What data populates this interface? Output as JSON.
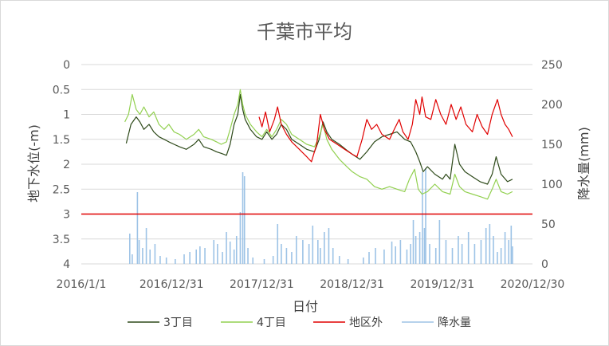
{
  "chart_data": {
    "type": "line",
    "title": "千葉市平均",
    "xlabel": "日付",
    "ylabel_left": "地下水位(-m)",
    "ylabel_right": "降水量(mm)",
    "x_ticks": [
      "2016/1/1",
      "2016/12/31",
      "2017/12/31",
      "2018/12/31",
      "2019/12/31",
      "2020/12/30"
    ],
    "xlim": [
      "2016-01-01",
      "2020-12-30"
    ],
    "ylim_left": [
      0,
      4
    ],
    "y_left_reversed": true,
    "y_left_ticks": [
      "0",
      "0.5",
      "1",
      "1.5",
      "2",
      "2.5",
      "3",
      "3.5",
      "4"
    ],
    "ylim_right": [
      0,
      250
    ],
    "y_right_ticks": [
      "0",
      "50",
      "100",
      "150",
      "200",
      "250"
    ],
    "legend_position": "bottom",
    "grid": true,
    "reference_line": {
      "axis": "left",
      "value": 3,
      "color": "#e00000"
    },
    "series": [
      {
        "name": "3丁目",
        "axis": "left",
        "color": "#2e4a1a",
        "points": [
          [
            "2016-07-01",
            1.58
          ],
          [
            "2016-07-20",
            1.2
          ],
          [
            "2016-08-10",
            1.05
          ],
          [
            "2016-08-25",
            1.15
          ],
          [
            "2016-09-10",
            1.3
          ],
          [
            "2016-10-01",
            1.2
          ],
          [
            "2016-10-20",
            1.35
          ],
          [
            "2016-11-10",
            1.45
          ],
          [
            "2016-12-01",
            1.5
          ],
          [
            "2016-12-20",
            1.55
          ],
          [
            "2017-01-10",
            1.6
          ],
          [
            "2017-02-01",
            1.65
          ],
          [
            "2017-03-01",
            1.7
          ],
          [
            "2017-04-01",
            1.6
          ],
          [
            "2017-04-20",
            1.5
          ],
          [
            "2017-05-10",
            1.65
          ],
          [
            "2017-06-10",
            1.7
          ],
          [
            "2017-07-01",
            1.75
          ],
          [
            "2017-07-20",
            1.78
          ],
          [
            "2017-08-10",
            1.82
          ],
          [
            "2017-08-25",
            1.6
          ],
          [
            "2017-09-10",
            1.2
          ],
          [
            "2017-09-25",
            1.0
          ],
          [
            "2017-10-05",
            0.6
          ],
          [
            "2017-10-15",
            0.9
          ],
          [
            "2017-10-25",
            1.1
          ],
          [
            "2017-11-15",
            1.3
          ],
          [
            "2017-12-10",
            1.45
          ],
          [
            "2018-01-01",
            1.5
          ],
          [
            "2018-01-20",
            1.35
          ],
          [
            "2018-02-10",
            1.5
          ],
          [
            "2018-03-01",
            1.4
          ],
          [
            "2018-03-20",
            1.2
          ],
          [
            "2018-04-10",
            1.3
          ],
          [
            "2018-05-01",
            1.5
          ],
          [
            "2018-06-01",
            1.6
          ],
          [
            "2018-07-01",
            1.7
          ],
          [
            "2018-08-01",
            1.75
          ],
          [
            "2018-08-20",
            1.5
          ],
          [
            "2018-09-05",
            1.15
          ],
          [
            "2018-09-20",
            1.35
          ],
          [
            "2018-10-10",
            1.5
          ],
          [
            "2018-11-10",
            1.6
          ],
          [
            "2018-12-10",
            1.72
          ],
          [
            "2019-01-01",
            1.8
          ],
          [
            "2019-02-01",
            1.9
          ],
          [
            "2019-03-01",
            1.75
          ],
          [
            "2019-04-01",
            1.55
          ],
          [
            "2019-05-01",
            1.45
          ],
          [
            "2019-06-01",
            1.4
          ],
          [
            "2019-07-01",
            1.35
          ],
          [
            "2019-08-01",
            1.5
          ],
          [
            "2019-08-25",
            1.55
          ],
          [
            "2019-09-15",
            1.75
          ],
          [
            "2019-10-01",
            1.95
          ],
          [
            "2019-10-15",
            2.15
          ],
          [
            "2019-11-01",
            2.05
          ],
          [
            "2019-12-01",
            2.2
          ],
          [
            "2020-01-01",
            2.3
          ],
          [
            "2020-01-15",
            2.2
          ],
          [
            "2020-02-01",
            2.3
          ],
          [
            "2020-02-20",
            1.6
          ],
          [
            "2020-03-10",
            2.0
          ],
          [
            "2020-04-01",
            2.15
          ],
          [
            "2020-05-01",
            2.25
          ],
          [
            "2020-06-01",
            2.35
          ],
          [
            "2020-07-01",
            2.4
          ],
          [
            "2020-07-20",
            2.2
          ],
          [
            "2020-08-05",
            1.85
          ],
          [
            "2020-08-25",
            2.2
          ],
          [
            "2020-09-20",
            2.35
          ],
          [
            "2020-10-10",
            2.3
          ]
        ]
      },
      {
        "name": "4丁目",
        "axis": "left",
        "color": "#92d050",
        "points": [
          [
            "2016-06-25",
            1.15
          ],
          [
            "2016-07-10",
            1.0
          ],
          [
            "2016-07-25",
            0.6
          ],
          [
            "2016-08-10",
            0.9
          ],
          [
            "2016-08-25",
            1.0
          ],
          [
            "2016-09-10",
            0.85
          ],
          [
            "2016-10-01",
            1.05
          ],
          [
            "2016-10-20",
            0.95
          ],
          [
            "2016-11-10",
            1.2
          ],
          [
            "2016-12-01",
            1.3
          ],
          [
            "2016-12-20",
            1.2
          ],
          [
            "2017-01-10",
            1.35
          ],
          [
            "2017-02-01",
            1.4
          ],
          [
            "2017-03-01",
            1.5
          ],
          [
            "2017-04-01",
            1.4
          ],
          [
            "2017-04-20",
            1.3
          ],
          [
            "2017-05-10",
            1.45
          ],
          [
            "2017-06-10",
            1.5
          ],
          [
            "2017-07-01",
            1.55
          ],
          [
            "2017-07-20",
            1.6
          ],
          [
            "2017-08-10",
            1.55
          ],
          [
            "2017-08-25",
            1.3
          ],
          [
            "2017-09-10",
            1.0
          ],
          [
            "2017-09-25",
            0.8
          ],
          [
            "2017-10-05",
            0.5
          ],
          [
            "2017-10-15",
            0.8
          ],
          [
            "2017-10-25",
            1.0
          ],
          [
            "2017-11-15",
            1.2
          ],
          [
            "2017-12-10",
            1.35
          ],
          [
            "2018-01-01",
            1.45
          ],
          [
            "2018-01-20",
            1.3
          ],
          [
            "2018-02-10",
            1.45
          ],
          [
            "2018-03-01",
            1.3
          ],
          [
            "2018-03-20",
            1.1
          ],
          [
            "2018-04-10",
            1.2
          ],
          [
            "2018-05-01",
            1.4
          ],
          [
            "2018-06-01",
            1.5
          ],
          [
            "2018-07-01",
            1.6
          ],
          [
            "2018-08-01",
            1.65
          ],
          [
            "2018-08-20",
            1.45
          ],
          [
            "2018-09-05",
            1.2
          ],
          [
            "2018-09-20",
            1.5
          ],
          [
            "2018-10-10",
            1.7
          ],
          [
            "2018-11-10",
            1.9
          ],
          [
            "2018-12-10",
            2.05
          ],
          [
            "2019-01-01",
            2.15
          ],
          [
            "2019-02-01",
            2.25
          ],
          [
            "2019-03-01",
            2.3
          ],
          [
            "2019-04-01",
            2.45
          ],
          [
            "2019-05-01",
            2.5
          ],
          [
            "2019-06-01",
            2.45
          ],
          [
            "2019-07-01",
            2.5
          ],
          [
            "2019-08-01",
            2.55
          ],
          [
            "2019-08-20",
            2.3
          ],
          [
            "2019-09-10",
            2.1
          ],
          [
            "2019-09-25",
            2.5
          ],
          [
            "2019-10-10",
            2.6
          ],
          [
            "2019-11-01",
            2.55
          ],
          [
            "2019-12-01",
            2.4
          ],
          [
            "2020-01-01",
            2.55
          ],
          [
            "2020-02-01",
            2.6
          ],
          [
            "2020-02-20",
            2.2
          ],
          [
            "2020-03-10",
            2.45
          ],
          [
            "2020-04-01",
            2.55
          ],
          [
            "2020-05-01",
            2.6
          ],
          [
            "2020-06-01",
            2.65
          ],
          [
            "2020-07-01",
            2.7
          ],
          [
            "2020-07-20",
            2.5
          ],
          [
            "2020-08-05",
            2.3
          ],
          [
            "2020-08-25",
            2.55
          ],
          [
            "2020-09-20",
            2.6
          ],
          [
            "2020-10-10",
            2.55
          ]
        ]
      },
      {
        "name": "地区外",
        "axis": "left",
        "color": "#e00000",
        "points": [
          [
            "2017-12-20",
            1.05
          ],
          [
            "2018-01-01",
            1.25
          ],
          [
            "2018-01-15",
            0.95
          ],
          [
            "2018-02-01",
            1.35
          ],
          [
            "2018-02-20",
            1.1
          ],
          [
            "2018-03-05",
            0.85
          ],
          [
            "2018-03-20",
            1.2
          ],
          [
            "2018-04-10",
            1.4
          ],
          [
            "2018-05-01",
            1.55
          ],
          [
            "2018-06-01",
            1.7
          ],
          [
            "2018-07-01",
            1.85
          ],
          [
            "2018-07-20",
            1.95
          ],
          [
            "2018-08-10",
            1.6
          ],
          [
            "2018-08-25",
            1.0
          ],
          [
            "2018-09-10",
            1.3
          ],
          [
            "2018-10-01",
            1.5
          ],
          [
            "2018-11-01",
            1.6
          ],
          [
            "2018-12-01",
            1.7
          ],
          [
            "2019-01-01",
            1.8
          ],
          [
            "2019-01-20",
            1.85
          ],
          [
            "2019-02-10",
            1.5
          ],
          [
            "2019-03-01",
            1.1
          ],
          [
            "2019-03-20",
            1.3
          ],
          [
            "2019-04-10",
            1.2
          ],
          [
            "2019-05-01",
            1.4
          ],
          [
            "2019-06-01",
            1.5
          ],
          [
            "2019-06-20",
            1.3
          ],
          [
            "2019-07-10",
            1.1
          ],
          [
            "2019-07-25",
            1.35
          ],
          [
            "2019-08-15",
            1.5
          ],
          [
            "2019-09-01",
            1.2
          ],
          [
            "2019-09-15",
            0.7
          ],
          [
            "2019-10-01",
            1.0
          ],
          [
            "2019-10-10",
            0.65
          ],
          [
            "2019-10-25",
            1.05
          ],
          [
            "2019-11-15",
            1.1
          ],
          [
            "2019-12-05",
            0.7
          ],
          [
            "2019-12-25",
            1.0
          ],
          [
            "2020-01-15",
            1.2
          ],
          [
            "2020-02-05",
            0.8
          ],
          [
            "2020-02-25",
            1.1
          ],
          [
            "2020-03-15",
            0.85
          ],
          [
            "2020-04-05",
            1.2
          ],
          [
            "2020-05-01",
            1.35
          ],
          [
            "2020-05-20",
            1.0
          ],
          [
            "2020-06-10",
            1.25
          ],
          [
            "2020-07-01",
            1.4
          ],
          [
            "2020-07-20",
            1.0
          ],
          [
            "2020-08-10",
            0.7
          ],
          [
            "2020-08-25",
            1.0
          ],
          [
            "2020-09-10",
            1.2
          ],
          [
            "2020-09-25",
            1.3
          ],
          [
            "2020-10-10",
            1.45
          ]
        ]
      },
      {
        "name": "降水量",
        "axis": "right",
        "color": "#9dc3e6",
        "render": "spikes",
        "points": [
          [
            "2016-07-15",
            38
          ],
          [
            "2016-07-25",
            12
          ],
          [
            "2016-08-15",
            90
          ],
          [
            "2016-08-22",
            30
          ],
          [
            "2016-09-05",
            20
          ],
          [
            "2016-09-20",
            45
          ],
          [
            "2016-10-05",
            18
          ],
          [
            "2016-10-25",
            25
          ],
          [
            "2016-11-15",
            10
          ],
          [
            "2016-12-10",
            8
          ],
          [
            "2017-01-15",
            6
          ],
          [
            "2017-02-20",
            12
          ],
          [
            "2017-03-15",
            15
          ],
          [
            "2017-04-10",
            18
          ],
          [
            "2017-04-25",
            22
          ],
          [
            "2017-05-15",
            20
          ],
          [
            "2017-06-20",
            30
          ],
          [
            "2017-07-05",
            25
          ],
          [
            "2017-07-25",
            15
          ],
          [
            "2017-08-10",
            40
          ],
          [
            "2017-08-25",
            28
          ],
          [
            "2017-09-10",
            18
          ],
          [
            "2017-09-20",
            35
          ],
          [
            "2017-10-05",
            65
          ],
          [
            "2017-10-15",
            115
          ],
          [
            "2017-10-22",
            110
          ],
          [
            "2017-11-05",
            20
          ],
          [
            "2017-11-25",
            8
          ],
          [
            "2018-01-10",
            6
          ],
          [
            "2018-02-15",
            10
          ],
          [
            "2018-03-05",
            50
          ],
          [
            "2018-03-20",
            25
          ],
          [
            "2018-04-10",
            20
          ],
          [
            "2018-05-01",
            15
          ],
          [
            "2018-05-20",
            35
          ],
          [
            "2018-06-15",
            30
          ],
          [
            "2018-07-10",
            25
          ],
          [
            "2018-07-25",
            48
          ],
          [
            "2018-08-15",
            30
          ],
          [
            "2018-08-25",
            20
          ],
          [
            "2018-09-10",
            40
          ],
          [
            "2018-09-28",
            45
          ],
          [
            "2018-10-15",
            20
          ],
          [
            "2018-11-10",
            10
          ],
          [
            "2018-12-15",
            6
          ],
          [
            "2019-02-15",
            8
          ],
          [
            "2019-03-10",
            15
          ],
          [
            "2019-04-05",
            20
          ],
          [
            "2019-05-10",
            18
          ],
          [
            "2019-06-10",
            28
          ],
          [
            "2019-06-25",
            22
          ],
          [
            "2019-07-15",
            30
          ],
          [
            "2019-08-10",
            18
          ],
          [
            "2019-08-25",
            25
          ],
          [
            "2019-09-05",
            55
          ],
          [
            "2019-09-15",
            35
          ],
          [
            "2019-10-01",
            40
          ],
          [
            "2019-10-12",
            115
          ],
          [
            "2019-10-20",
            45
          ],
          [
            "2019-10-25",
            120
          ],
          [
            "2019-11-10",
            25
          ],
          [
            "2019-12-05",
            20
          ],
          [
            "2019-12-20",
            55
          ],
          [
            "2020-01-15",
            30
          ],
          [
            "2020-02-10",
            20
          ],
          [
            "2020-03-05",
            35
          ],
          [
            "2020-03-20",
            25
          ],
          [
            "2020-04-15",
            40
          ],
          [
            "2020-05-10",
            25
          ],
          [
            "2020-06-05",
            30
          ],
          [
            "2020-06-25",
            45
          ],
          [
            "2020-07-10",
            50
          ],
          [
            "2020-07-25",
            35
          ],
          [
            "2020-08-10",
            15
          ],
          [
            "2020-08-25",
            20
          ],
          [
            "2020-09-10",
            40
          ],
          [
            "2020-09-25",
            30
          ],
          [
            "2020-10-05",
            48
          ],
          [
            "2020-10-10",
            22
          ]
        ]
      }
    ]
  }
}
